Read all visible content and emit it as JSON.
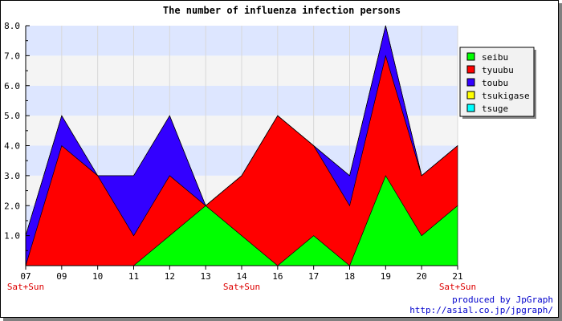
{
  "chart_data": {
    "type": "area",
    "stacked": true,
    "title": "The number of influenza infection persons",
    "x": [
      "07",
      "09",
      "10",
      "11",
      "12",
      "13",
      "14",
      "16",
      "17",
      "18",
      "19",
      "20",
      "21"
    ],
    "weekend_flags": [
      "Sat+Sun",
      "",
      "",
      "",
      "",
      "",
      "Sat+Sun",
      "",
      "",
      "",
      "",
      "",
      "Sat+Sun"
    ],
    "ylim": [
      0,
      8
    ],
    "yticks": [
      "1.0",
      "2.0",
      "3.0",
      "4.0",
      "5.0",
      "6.0",
      "7.0",
      "8.0"
    ],
    "grid": "horizontal bands",
    "legend_position": "right",
    "series": [
      {
        "name": "seibu",
        "color": "#00ff00",
        "values": [
          0,
          0,
          0,
          0,
          1,
          2,
          1,
          0,
          1,
          0,
          3,
          1,
          2
        ]
      },
      {
        "name": "tyuubu",
        "color": "#ff0000",
        "values": [
          0,
          4,
          3,
          1,
          2,
          0,
          2,
          5,
          3,
          2,
          4,
          2,
          2
        ]
      },
      {
        "name": "toubu",
        "color": "#3300ff",
        "values": [
          1,
          1,
          0,
          2,
          2,
          0,
          0,
          0,
          0,
          1,
          1,
          0,
          0
        ]
      },
      {
        "name": "tsukigase",
        "color": "#ffff00",
        "values": [
          0,
          0,
          0,
          0,
          0,
          0,
          0,
          0,
          0,
          0,
          0,
          0,
          0
        ]
      },
      {
        "name": "tsuge",
        "color": "#00ffff",
        "values": [
          0,
          0,
          0,
          0,
          0,
          0,
          0,
          0,
          0,
          0,
          0,
          0,
          0
        ]
      }
    ]
  },
  "footer": {
    "produced_by": "produced by JpGraph",
    "url": "http://asial.co.jp/jpgraph/"
  }
}
